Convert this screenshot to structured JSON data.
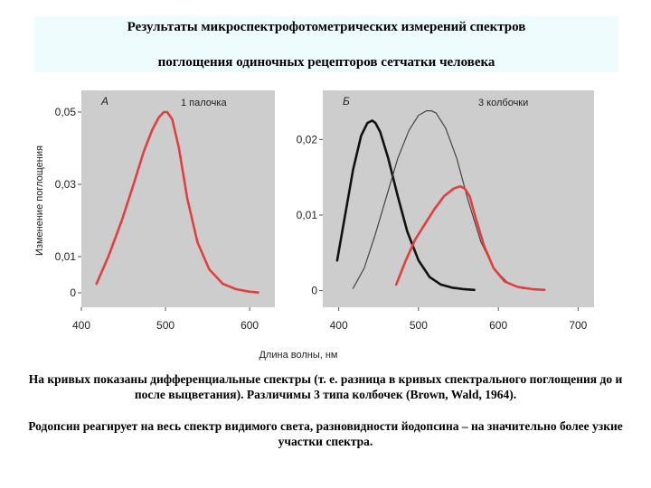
{
  "slide": {
    "title_line1": "Результаты микроспектрофотометрических измерений спектров",
    "title_line2": "поглощения одиночных рецепторов сетчатки человека",
    "caption": "На кривых показаны дифференциальные спектры (т. е. разница в кривых спектрального поглощения до и после выцветания). Различимы 3 типа колбочек (Brown, Wald, 1964).",
    "caption2": "Родопсин реагирует на весь спектр видимого света, разновидности йодопсина – на значительно более узкие участки спектра.",
    "xlabel": "Длина волны, нм",
    "ylabel": "Изменение поглощения"
  },
  "chart_data": [
    {
      "type": "line",
      "panel_letter": "А",
      "annotation": "1 палочка",
      "xlim": [
        400,
        630
      ],
      "ylim": [
        -0.004,
        0.056
      ],
      "x_ticks": [
        "400",
        "500",
        "600"
      ],
      "x_tick_values": [
        400,
        500,
        600
      ],
      "y_ticks": [
        "0",
        "0,01",
        "0,03",
        "0,05"
      ],
      "y_tick_values": [
        0,
        0.01,
        0.03,
        0.05
      ],
      "series": [
        {
          "color": "#e0403f",
          "x": [
            418,
            432,
            448,
            462,
            474,
            484,
            492,
            498,
            502,
            508,
            516,
            526,
            538,
            552,
            568,
            584,
            600,
            610
          ],
          "y": [
            0.0025,
            0.01,
            0.02,
            0.03,
            0.039,
            0.045,
            0.0485,
            0.05,
            0.05,
            0.048,
            0.04,
            0.026,
            0.014,
            0.0065,
            0.0025,
            0.001,
            0.0003,
            0.0001
          ]
        }
      ]
    },
    {
      "type": "line",
      "panel_letter": "Б",
      "annotation": "3 колбочки",
      "xlim": [
        380,
        720
      ],
      "ylim": [
        -0.0022,
        0.0265
      ],
      "x_ticks": [
        "400",
        "500",
        "600",
        "700"
      ],
      "x_tick_values": [
        400,
        500,
        600,
        700
      ],
      "y_ticks": [
        "0",
        "0,01",
        "0,02"
      ],
      "y_tick_values": [
        0,
        0.01,
        0.02
      ],
      "series": [
        {
          "color": "#111111",
          "x": [
            398,
            408,
            418,
            428,
            436,
            442,
            446,
            452,
            462,
            474,
            486,
            500,
            514,
            528,
            542,
            556,
            570
          ],
          "y": [
            0.004,
            0.01,
            0.016,
            0.0205,
            0.0222,
            0.0225,
            0.0222,
            0.021,
            0.0175,
            0.0125,
            0.0078,
            0.004,
            0.0018,
            0.0008,
            0.0004,
            0.0002,
            0.0001
          ]
        },
        {
          "color": "#444444",
          "x": [
            418,
            432,
            446,
            460,
            474,
            488,
            500,
            510,
            516,
            522,
            534,
            548,
            562,
            578,
            594,
            612,
            630,
            652
          ],
          "y": [
            0.0003,
            0.003,
            0.0075,
            0.0125,
            0.0175,
            0.0212,
            0.0232,
            0.0238,
            0.0238,
            0.0235,
            0.0215,
            0.0175,
            0.012,
            0.0065,
            0.003,
            0.001,
            0.0003,
            0.0001
          ]
        },
        {
          "color": "#e0403f",
          "x": [
            472,
            484,
            496,
            508,
            520,
            532,
            544,
            552,
            558,
            564,
            572,
            582,
            594,
            608,
            624,
            642,
            658
          ],
          "y": [
            0.0008,
            0.004,
            0.0068,
            0.0088,
            0.0108,
            0.0125,
            0.0135,
            0.0138,
            0.0135,
            0.0125,
            0.0095,
            0.006,
            0.003,
            0.0012,
            0.0005,
            0.0002,
            0.0001
          ]
        }
      ]
    }
  ]
}
